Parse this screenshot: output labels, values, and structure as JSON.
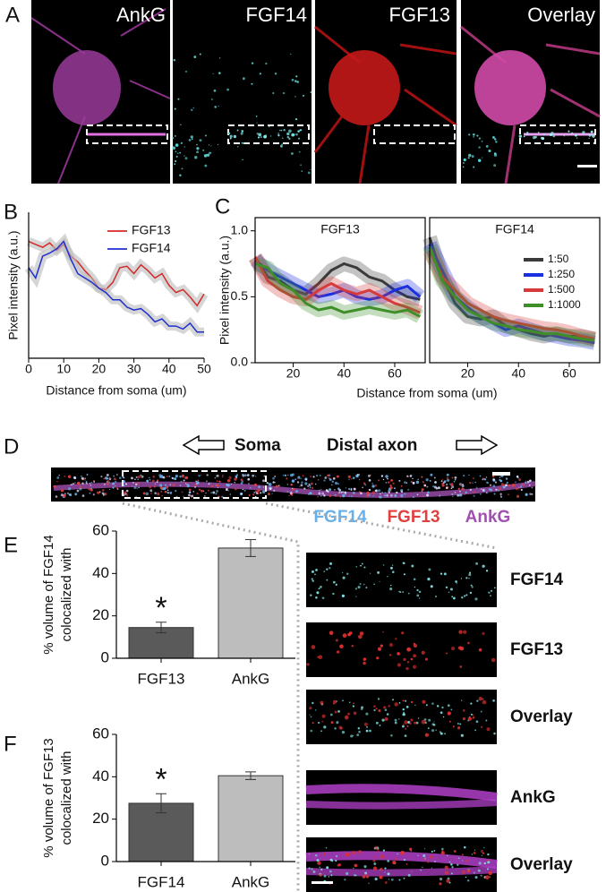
{
  "panel_labels": [
    "A",
    "B",
    "C",
    "D",
    "E",
    "F"
  ],
  "panel_a": {
    "channels": [
      "AnkG",
      "FGF14",
      "FGF13",
      "Overlay"
    ]
  },
  "panel_d": {
    "left_label": "Soma",
    "right_label": "Distal axon",
    "channels": [
      {
        "name": "FGF14",
        "color": "#6ab0e8"
      },
      {
        "name": "FGF13",
        "color": "#e04040"
      },
      {
        "name": "AnkG",
        "color": "#a050b0"
      }
    ]
  },
  "insets": [
    "FGF14",
    "FGF13",
    "Overlay",
    "AnkG",
    "Overlay"
  ],
  "chart_data": [
    {
      "type": "line",
      "ylabel": "Pixel intensity (a.u.)",
      "xlabel": "Distance from soma (um)",
      "x": [
        0,
        2,
        4,
        6,
        8,
        10,
        12,
        14,
        16,
        18,
        20,
        22,
        24,
        26,
        28,
        30,
        32,
        34,
        36,
        38,
        40,
        42,
        44,
        46,
        48,
        50
      ],
      "xlim": [
        0,
        50
      ],
      "xticks": [
        0,
        10,
        20,
        30,
        40,
        50
      ],
      "ylim": [
        0,
        1
      ],
      "series": [
        {
          "name": "FGF13",
          "color": "#d42a2a",
          "values": [
            0.8,
            0.78,
            0.76,
            0.79,
            0.74,
            0.78,
            0.7,
            0.66,
            0.6,
            0.55,
            0.48,
            0.47,
            0.52,
            0.62,
            0.63,
            0.58,
            0.64,
            0.6,
            0.55,
            0.58,
            0.5,
            0.45,
            0.47,
            0.42,
            0.36,
            0.44
          ]
        },
        {
          "name": "FGF14",
          "color": "#1f2fd0",
          "values": [
            0.62,
            0.55,
            0.7,
            0.72,
            0.75,
            0.8,
            0.68,
            0.58,
            0.55,
            0.52,
            0.48,
            0.45,
            0.4,
            0.4,
            0.35,
            0.33,
            0.34,
            0.3,
            0.25,
            0.27,
            0.22,
            0.22,
            0.2,
            0.24,
            0.18,
            0.18
          ]
        }
      ]
    },
    {
      "type": "line",
      "title": "FGF13",
      "ylabel": "Pixel intensity (a.u.)",
      "xlabel": "Distance from soma (um)",
      "x": [
        5,
        10,
        15,
        20,
        25,
        30,
        35,
        40,
        45,
        50,
        55,
        60,
        65,
        70
      ],
      "xlim": [
        5,
        72
      ],
      "xticks": [
        20,
        40,
        60
      ],
      "ylim": [
        0,
        1.1
      ],
      "yticks": [
        {
          "value": 0,
          "label": "0.0"
        },
        {
          "value": 0.5,
          "label": "0.5"
        },
        {
          "value": 1,
          "label": "1.0"
        }
      ],
      "series": [
        {
          "color": "#3a3a3a",
          "values": [
            0.8,
            0.65,
            0.62,
            0.55,
            0.52,
            0.6,
            0.7,
            0.75,
            0.72,
            0.65,
            0.62,
            0.55,
            0.5,
            0.48
          ]
        },
        {
          "color": "#1a2fe0",
          "values": [
            0.78,
            0.7,
            0.65,
            0.6,
            0.55,
            0.5,
            0.52,
            0.55,
            0.5,
            0.48,
            0.5,
            0.55,
            0.58,
            0.5
          ]
        },
        {
          "color": "#d63a3a",
          "values": [
            0.8,
            0.62,
            0.55,
            0.5,
            0.48,
            0.55,
            0.6,
            0.55,
            0.52,
            0.55,
            0.5,
            0.45,
            0.42,
            0.38
          ]
        },
        {
          "color": "#3e8e2a",
          "values": [
            0.75,
            0.72,
            0.6,
            0.55,
            0.45,
            0.4,
            0.42,
            0.38,
            0.4,
            0.42,
            0.4,
            0.38,
            0.4,
            0.35
          ]
        }
      ]
    },
    {
      "type": "line",
      "title": "FGF14",
      "x": [
        5,
        10,
        15,
        20,
        25,
        30,
        35,
        40,
        45,
        50,
        55,
        60,
        65,
        70
      ],
      "xlim": [
        5,
        72
      ],
      "xticks": [
        20,
        40,
        60
      ],
      "ylim": [
        0,
        1.1
      ],
      "series": [
        {
          "name": "1:50",
          "color": "#3a3a3a",
          "values": [
            0.95,
            0.65,
            0.45,
            0.35,
            0.33,
            0.35,
            0.28,
            0.25,
            0.22,
            0.2,
            0.22,
            0.2,
            0.2,
            0.18
          ]
        },
        {
          "name": "1:250",
          "color": "#1a2fe0",
          "values": [
            0.9,
            0.7,
            0.5,
            0.42,
            0.35,
            0.3,
            0.25,
            0.28,
            0.25,
            0.22,
            0.2,
            0.18,
            0.17,
            0.15
          ]
        },
        {
          "name": "1:500",
          "color": "#d63a3a",
          "values": [
            0.85,
            0.65,
            0.55,
            0.45,
            0.4,
            0.35,
            0.32,
            0.3,
            0.28,
            0.26,
            0.25,
            0.23,
            0.2,
            0.18
          ]
        },
        {
          "name": "1:1000",
          "color": "#3e8e2a",
          "values": [
            0.88,
            0.62,
            0.5,
            0.4,
            0.35,
            0.3,
            0.28,
            0.25,
            0.24,
            0.22,
            0.22,
            0.2,
            0.18,
            0.17
          ]
        }
      ]
    },
    {
      "type": "bar",
      "ylabel": [
        "% volume of FGF14",
        "colocalized with"
      ],
      "categories": [
        "FGF13",
        "AnkG"
      ],
      "values": [
        14.5,
        52
      ],
      "errors": [
        2.5,
        4
      ],
      "colors": [
        "#5a5a5a",
        "#bdbdbd"
      ],
      "annotation": "*",
      "ylim": [
        0,
        60
      ],
      "yticks": [
        0,
        20,
        40,
        60
      ]
    },
    {
      "type": "bar",
      "ylabel": [
        "% volume of FGF13",
        "colocalized with"
      ],
      "categories": [
        "FGF14",
        "AnkG"
      ],
      "values": [
        27.5,
        40.5
      ],
      "errors": [
        4.5,
        1.8
      ],
      "colors": [
        "#5a5a5a",
        "#bdbdbd"
      ],
      "annotation": "*",
      "ylim": [
        0,
        60
      ],
      "yticks": [
        0,
        20,
        40,
        60
      ]
    }
  ]
}
